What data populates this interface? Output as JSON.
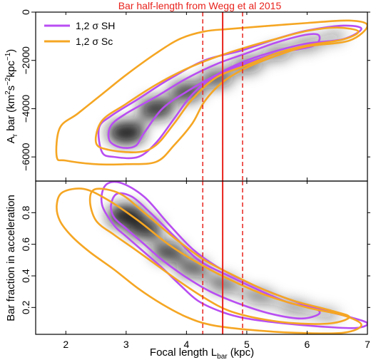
{
  "title": "Bar half-length from Wegg et al 2015",
  "colors": {
    "sh": "#b84df2",
    "sc": "#f5a623",
    "ref": "#e8231d",
    "core": "#141414"
  },
  "chart_data": [
    {
      "type": "contour",
      "panel": "top",
      "title": "Bar half-length from Wegg et al 2015",
      "xlabel": "",
      "ylabel": "A_r bar (km^2 s^-2 kpc^-1)",
      "xlim": [
        1.5,
        7.0
      ],
      "ylim": [
        -7000,
        0
      ],
      "yticks": [
        0,
        -2000,
        -4000,
        -6000
      ],
      "ytick_labels": [
        "0",
        "−2000",
        "−4000",
        "−6000"
      ],
      "legend": {
        "position": "top-left",
        "entries": [
          {
            "label": "1,2 σ SH",
            "color": "#b84df2"
          },
          {
            "label": "1,2 σ Sc",
            "color": "#f5a623"
          }
        ]
      },
      "reference_lines": {
        "solid": 4.6,
        "dashed": [
          4.27,
          4.93
        ]
      },
      "density_ridge": [
        {
          "x": 3.0,
          "y": -5000
        },
        {
          "x": 3.5,
          "y": -4000
        },
        {
          "x": 4.0,
          "y": -3300
        },
        {
          "x": 4.5,
          "y": -2750
        },
        {
          "x": 5.0,
          "y": -2200
        },
        {
          "x": 5.5,
          "y": -1700
        },
        {
          "x": 6.0,
          "y": -1350
        },
        {
          "x": 6.5,
          "y": -1000
        }
      ],
      "series": [
        {
          "name": "1,2 σ SH",
          "level": "1σ",
          "color": "#b84df2",
          "points": [
            [
              2.72,
              -5300
            ],
            [
              2.75,
              -4700
            ],
            [
              3.0,
              -4200
            ],
            [
              3.5,
              -3500
            ],
            [
              4.0,
              -2750
            ],
            [
              4.5,
              -2150
            ],
            [
              5.0,
              -1700
            ],
            [
              5.5,
              -1250
            ],
            [
              6.0,
              -930
            ],
            [
              6.2,
              -980
            ],
            [
              6.1,
              -1400
            ],
            [
              5.5,
              -1700
            ],
            [
              5.0,
              -2100
            ],
            [
              4.5,
              -2600
            ],
            [
              4.0,
              -3300
            ],
            [
              3.6,
              -4000
            ],
            [
              3.3,
              -5000
            ],
            [
              3.15,
              -5550
            ],
            [
              2.9,
              -5600
            ]
          ]
        },
        {
          "name": "1,2 σ SH",
          "level": "2σ",
          "color": "#b84df2",
          "points": [
            [
              2.6,
              -5800
            ],
            [
              2.55,
              -4800
            ],
            [
              2.75,
              -4300
            ],
            [
              3.2,
              -3600
            ],
            [
              3.7,
              -2800
            ],
            [
              4.3,
              -2000
            ],
            [
              4.9,
              -1600
            ],
            [
              5.5,
              -1100
            ],
            [
              6.0,
              -760
            ],
            [
              6.6,
              -560
            ],
            [
              6.9,
              -690
            ],
            [
              6.6,
              -1120
            ],
            [
              6.0,
              -1300
            ],
            [
              5.5,
              -1600
            ],
            [
              5.0,
              -2000
            ],
            [
              4.5,
              -2600
            ],
            [
              4.1,
              -3400
            ],
            [
              3.8,
              -4400
            ],
            [
              3.5,
              -5400
            ],
            [
              3.2,
              -6000
            ],
            [
              2.8,
              -6000
            ]
          ]
        },
        {
          "name": "1,2 σ Sc",
          "level": "1σ",
          "color": "#f5a623",
          "points": [
            [
              2.5,
              -5400
            ],
            [
              2.6,
              -4500
            ],
            [
              3.0,
              -3800
            ],
            [
              3.5,
              -3000
            ],
            [
              4.0,
              -2350
            ],
            [
              4.5,
              -1850
            ],
            [
              5.0,
              -1450
            ],
            [
              5.5,
              -1100
            ],
            [
              6.0,
              -780
            ],
            [
              6.5,
              -640
            ],
            [
              6.85,
              -800
            ],
            [
              6.6,
              -1130
            ],
            [
              6.0,
              -1380
            ],
            [
              5.5,
              -1700
            ],
            [
              5.0,
              -2200
            ],
            [
              4.5,
              -2700
            ],
            [
              4.1,
              -3600
            ],
            [
              3.8,
              -4600
            ],
            [
              3.5,
              -5500
            ],
            [
              3.2,
              -5800
            ],
            [
              2.7,
              -5700
            ]
          ]
        },
        {
          "name": "1,2 σ Sc",
          "level": "2σ",
          "color": "#f5a623",
          "points": [
            [
              1.85,
              -6000
            ],
            [
              1.9,
              -4800
            ],
            [
              2.2,
              -4200
            ],
            [
              2.6,
              -3400
            ],
            [
              3.0,
              -2600
            ],
            [
              3.5,
              -1700
            ],
            [
              3.9,
              -1100
            ],
            [
              4.3,
              -800
            ],
            [
              4.7,
              -700
            ],
            [
              5.2,
              -600
            ],
            [
              6.0,
              -450
            ],
            [
              6.7,
              -350
            ],
            [
              7.0,
              -560
            ],
            [
              6.7,
              -1180
            ],
            [
              6.0,
              -1420
            ],
            [
              5.5,
              -1800
            ],
            [
              5.0,
              -2300
            ],
            [
              4.6,
              -2900
            ],
            [
              4.3,
              -3700
            ],
            [
              4.1,
              -4600
            ],
            [
              3.8,
              -5500
            ],
            [
              3.5,
              -6200
            ],
            [
              3.0,
              -6300
            ],
            [
              2.5,
              -6300
            ],
            [
              2.0,
              -6150
            ]
          ]
        }
      ]
    },
    {
      "type": "contour",
      "panel": "bottom",
      "title": "",
      "xlabel": "Focal length L_bar (kpc)",
      "ylabel": "Bar fraction in acceleration",
      "xlim": [
        1.5,
        7.0
      ],
      "ylim": [
        0.03,
        1.0
      ],
      "xticks": [
        2,
        3,
        4,
        5,
        6,
        7
      ],
      "yticks": [
        0.2,
        0.4,
        0.6,
        0.8
      ],
      "ytick_labels": [
        "0.2",
        "0.4",
        "0.6",
        "0.8"
      ],
      "reference_lines": {
        "solid": 4.6,
        "dashed": [
          4.27,
          4.93
        ]
      },
      "density_ridge": [
        {
          "x": 3.0,
          "y": 0.78
        },
        {
          "x": 3.3,
          "y": 0.7
        },
        {
          "x": 3.7,
          "y": 0.55
        },
        {
          "x": 4.1,
          "y": 0.45
        },
        {
          "x": 4.6,
          "y": 0.35
        },
        {
          "x": 5.2,
          "y": 0.27
        },
        {
          "x": 5.8,
          "y": 0.2
        },
        {
          "x": 6.4,
          "y": 0.15
        }
      ],
      "series": [
        {
          "name": "1,2 σ SH",
          "level": "1σ",
          "color": "#b84df2",
          "points": [
            [
              2.75,
              0.85
            ],
            [
              2.85,
              0.92
            ],
            [
              3.1,
              0.9
            ],
            [
              3.4,
              0.8
            ],
            [
              3.8,
              0.65
            ],
            [
              4.2,
              0.5
            ],
            [
              4.7,
              0.4
            ],
            [
              5.2,
              0.31
            ],
            [
              5.7,
              0.23
            ],
            [
              6.1,
              0.2
            ],
            [
              6.2,
              0.16
            ],
            [
              5.9,
              0.13
            ],
            [
              5.4,
              0.16
            ],
            [
              4.9,
              0.22
            ],
            [
              4.4,
              0.3
            ],
            [
              4.0,
              0.39
            ],
            [
              3.6,
              0.5
            ],
            [
              3.3,
              0.6
            ],
            [
              3.0,
              0.7
            ],
            [
              2.8,
              0.77
            ]
          ]
        },
        {
          "name": "1,2 σ SH",
          "level": "2σ",
          "color": "#b84df2",
          "points": [
            [
              2.6,
              0.85
            ],
            [
              2.65,
              0.97
            ],
            [
              2.9,
              0.99
            ],
            [
              3.3,
              0.9
            ],
            [
              3.7,
              0.73
            ],
            [
              4.1,
              0.57
            ],
            [
              4.5,
              0.46
            ],
            [
              5.0,
              0.36
            ],
            [
              5.5,
              0.28
            ],
            [
              6.1,
              0.2
            ],
            [
              6.7,
              0.14
            ],
            [
              7.0,
              0.1
            ],
            [
              6.8,
              0.07
            ],
            [
              6.2,
              0.08
            ],
            [
              5.6,
              0.1
            ],
            [
              5.0,
              0.13
            ],
            [
              4.6,
              0.17
            ],
            [
              4.2,
              0.24
            ],
            [
              3.9,
              0.34
            ],
            [
              3.6,
              0.45
            ],
            [
              3.3,
              0.55
            ],
            [
              3.0,
              0.65
            ],
            [
              2.8,
              0.72
            ]
          ]
        },
        {
          "name": "1,2 σ Sc",
          "level": "1σ",
          "color": "#f5a623",
          "points": [
            [
              2.4,
              0.88
            ],
            [
              2.5,
              0.95
            ],
            [
              2.9,
              0.92
            ],
            [
              3.3,
              0.8
            ],
            [
              3.8,
              0.64
            ],
            [
              4.3,
              0.5
            ],
            [
              4.8,
              0.4
            ],
            [
              5.3,
              0.31
            ],
            [
              5.8,
              0.24
            ],
            [
              6.4,
              0.18
            ],
            [
              6.7,
              0.14
            ],
            [
              6.4,
              0.1
            ],
            [
              5.8,
              0.1
            ],
            [
              5.2,
              0.13
            ],
            [
              4.7,
              0.18
            ],
            [
              4.3,
              0.26
            ],
            [
              3.9,
              0.36
            ],
            [
              3.5,
              0.47
            ],
            [
              3.1,
              0.58
            ],
            [
              2.8,
              0.66
            ],
            [
              2.5,
              0.75
            ]
          ]
        },
        {
          "name": "1,2 σ Sc",
          "level": "2σ",
          "color": "#f5a623",
          "points": [
            [
              1.85,
              0.85
            ],
            [
              1.95,
              0.93
            ],
            [
              2.3,
              0.95
            ],
            [
              2.7,
              0.88
            ],
            [
              3.2,
              0.75
            ],
            [
              3.7,
              0.6
            ],
            [
              4.2,
              0.48
            ],
            [
              4.7,
              0.38
            ],
            [
              5.3,
              0.28
            ],
            [
              6.0,
              0.2
            ],
            [
              6.6,
              0.15
            ],
            [
              6.9,
              0.09
            ],
            [
              6.6,
              0.04
            ],
            [
              5.8,
              0.04
            ],
            [
              5.0,
              0.06
            ],
            [
              4.4,
              0.09
            ],
            [
              4.0,
              0.14
            ],
            [
              3.6,
              0.22
            ],
            [
              3.2,
              0.32
            ],
            [
              2.8,
              0.44
            ],
            [
              2.4,
              0.55
            ],
            [
              2.1,
              0.65
            ],
            [
              1.9,
              0.75
            ]
          ]
        }
      ]
    }
  ]
}
